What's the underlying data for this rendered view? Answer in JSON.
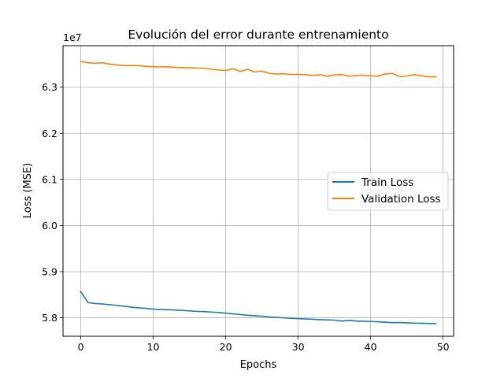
{
  "chart_data": {
    "type": "line",
    "title": "Evolución del error durante entrenamiento",
    "xlabel": "Epochs",
    "ylabel": "Loss (MSE)",
    "y_offset_label": "1e7",
    "xlim": [
      -2.45,
      51.45
    ],
    "ylim": [
      57600000,
      63900000
    ],
    "xticks": [
      0,
      10,
      20,
      30,
      40,
      50
    ],
    "yticks": [
      58000000,
      59000000,
      60000000,
      61000000,
      62000000,
      63000000
    ],
    "ytick_labels": [
      "5.8",
      "5.9",
      "6.0",
      "6.1",
      "6.2",
      "6.3"
    ],
    "grid": true,
    "legend_position": "center-right",
    "x": [
      0,
      1,
      2,
      3,
      4,
      5,
      6,
      7,
      8,
      9,
      10,
      11,
      12,
      13,
      14,
      15,
      16,
      17,
      18,
      19,
      20,
      21,
      22,
      23,
      24,
      25,
      26,
      27,
      28,
      29,
      30,
      31,
      32,
      33,
      34,
      35,
      36,
      37,
      38,
      39,
      40,
      41,
      42,
      43,
      44,
      45,
      46,
      47,
      48,
      49
    ],
    "series": [
      {
        "name": "Train Loss",
        "color": "#1f77b4",
        "values": [
          58570000,
          58330000,
          58310000,
          58300000,
          58285000,
          58270000,
          58250000,
          58230000,
          58215000,
          58205000,
          58190000,
          58180000,
          58175000,
          58168000,
          58160000,
          58150000,
          58140000,
          58135000,
          58125000,
          58115000,
          58100000,
          58085000,
          58070000,
          58055000,
          58045000,
          58035000,
          58020000,
          58010000,
          57998000,
          57990000,
          57982000,
          57975000,
          57968000,
          57960000,
          57955000,
          57950000,
          57930000,
          57945000,
          57930000,
          57925000,
          57920000,
          57915000,
          57905000,
          57895000,
          57898000,
          57892000,
          57885000,
          57882000,
          57878000,
          57875000
        ]
      },
      {
        "name": "Validation Loss",
        "color": "#ff7f0e",
        "values": [
          63560000,
          63530000,
          63520000,
          63530000,
          63500000,
          63480000,
          63470000,
          63470000,
          63465000,
          63450000,
          63445000,
          63440000,
          63440000,
          63430000,
          63425000,
          63420000,
          63415000,
          63410000,
          63390000,
          63375000,
          63360000,
          63400000,
          63340000,
          63390000,
          63330000,
          63350000,
          63300000,
          63285000,
          63290000,
          63275000,
          63280000,
          63270000,
          63255000,
          63270000,
          63240000,
          63265000,
          63275000,
          63240000,
          63255000,
          63260000,
          63245000,
          63240000,
          63285000,
          63300000,
          63230000,
          63245000,
          63270000,
          63250000,
          63225000,
          63225000
        ]
      }
    ]
  }
}
